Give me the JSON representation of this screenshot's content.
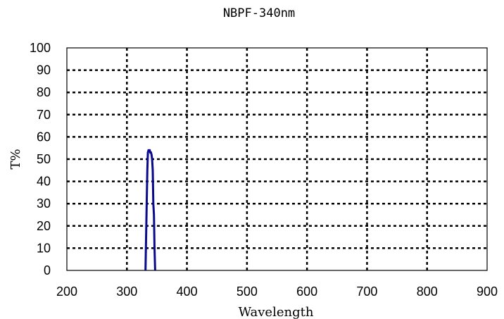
{
  "chart_data": {
    "type": "line",
    "title": "NBPF-340nm",
    "xlabel": "Wavelength",
    "ylabel": "T%",
    "xlim": [
      200,
      900
    ],
    "ylim": [
      0,
      100
    ],
    "x_ticks": [
      200,
      300,
      400,
      500,
      600,
      700,
      800,
      900
    ],
    "y_ticks": [
      0,
      10,
      20,
      30,
      40,
      50,
      60,
      70,
      80,
      90,
      100
    ],
    "grid": true,
    "series": [
      {
        "color": "#0a0a8c",
        "x": [
          331,
          333,
          334,
          335,
          336,
          337,
          338,
          339,
          340,
          341,
          342,
          343,
          344,
          345,
          346,
          347
        ],
        "y": [
          0,
          30,
          45,
          53,
          54,
          54,
          54,
          53,
          53,
          52,
          50,
          45,
          30,
          25,
          10,
          0
        ]
      }
    ]
  }
}
